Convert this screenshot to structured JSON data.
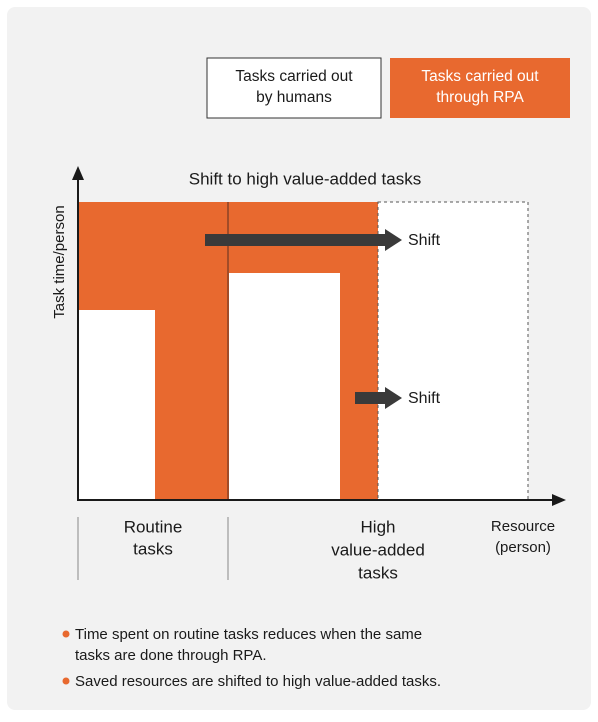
{
  "legend": [
    {
      "lines": [
        "Tasks carried out",
        "by humans"
      ]
    },
    {
      "lines": [
        "Tasks carried out",
        "through RPA"
      ]
    }
  ],
  "title": "Shift to high value-added tasks",
  "y_axis_label": "Task time/person",
  "arrows": [
    "Shift",
    "Shift"
  ],
  "x_groups": [
    {
      "lines": [
        "Routine",
        "tasks"
      ]
    },
    {
      "lines": [
        "High",
        "value-added",
        "tasks"
      ]
    }
  ],
  "x_axis_label": {
    "lines": [
      "Resource",
      "(person)"
    ]
  },
  "bullets": [
    {
      "lines": [
        "Time spent on routine tasks reduces when the same",
        "tasks are done through RPA."
      ]
    },
    {
      "lines": [
        "Saved resources are shifted to high value-added tasks."
      ]
    }
  ]
}
